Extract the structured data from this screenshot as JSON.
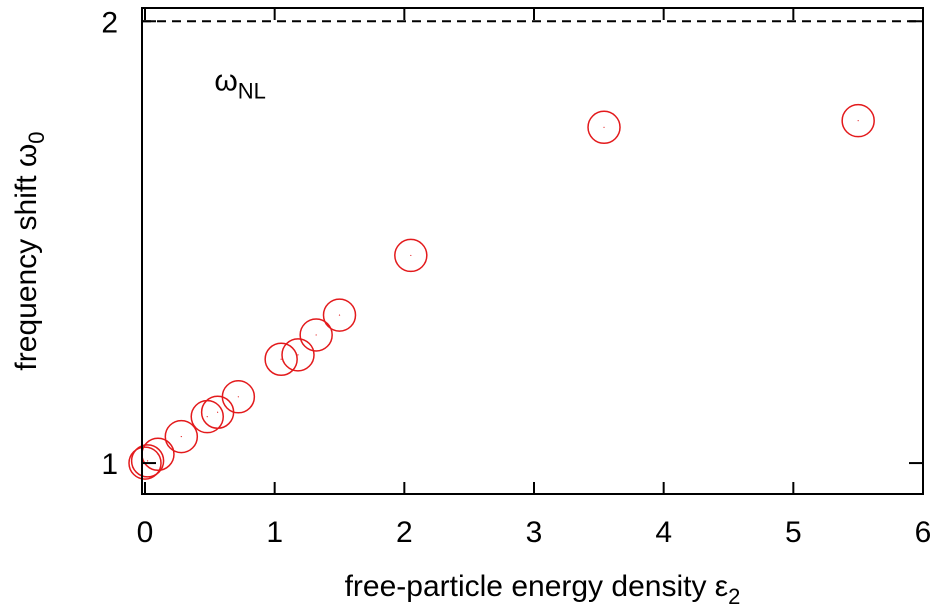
{
  "chart_data": {
    "type": "scatter",
    "xlabel": "free-particle energy density ε",
    "xlabel_sub": "2",
    "ylabel": "frequency shift ω",
    "ylabel_sub": "0",
    "xlim": [
      0,
      6
    ],
    "ylim": [
      0.93,
      2.03
    ],
    "x_ticks": [
      0,
      1,
      2,
      3,
      4,
      5,
      6
    ],
    "x_tick_labels": [
      "0",
      "1",
      "2",
      "3",
      "4",
      "5",
      "6"
    ],
    "y_ticks": [
      1,
      2
    ],
    "y_tick_labels": [
      "1",
      "2"
    ],
    "grid": false,
    "reference_line": {
      "y": 2,
      "style": "dashed",
      "color": "#000000"
    },
    "annotation": {
      "text": "ω",
      "sub": "NL",
      "x": 0.55,
      "y": 1.87
    },
    "marker": {
      "shape": "open-circle",
      "color": "#e31a1c"
    },
    "points": [
      {
        "x": 0.0,
        "y": 1.0
      },
      {
        "x": 0.02,
        "y": 1.005
      },
      {
        "x": 0.1,
        "y": 1.02
      },
      {
        "x": 0.28,
        "y": 1.06
      },
      {
        "x": 0.48,
        "y": 1.105
      },
      {
        "x": 0.56,
        "y": 1.115
      },
      {
        "x": 0.72,
        "y": 1.15
      },
      {
        "x": 1.05,
        "y": 1.235
      },
      {
        "x": 1.18,
        "y": 1.245
      },
      {
        "x": 1.32,
        "y": 1.29
      },
      {
        "x": 1.5,
        "y": 1.335
      },
      {
        "x": 2.05,
        "y": 1.47
      },
      {
        "x": 3.54,
        "y": 1.76
      },
      {
        "x": 5.5,
        "y": 1.775
      }
    ]
  }
}
